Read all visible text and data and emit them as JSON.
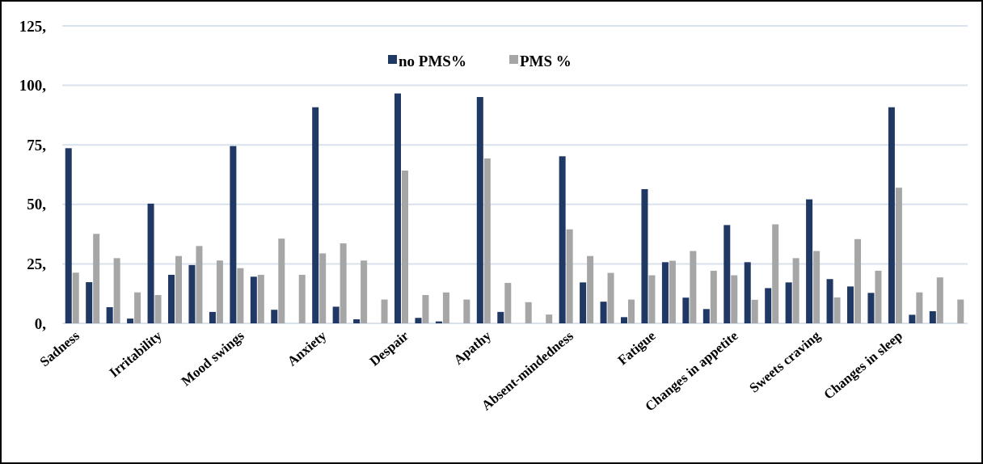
{
  "chart_data": {
    "type": "bar",
    "categories": [
      "Sadness",
      null,
      null,
      null,
      "Irritability",
      null,
      null,
      null,
      "Mood swings",
      null,
      null,
      null,
      "Anxiety",
      null,
      null,
      null,
      "Despair",
      null,
      null,
      null,
      "Apathy",
      null,
      null,
      null,
      "Absent-mindedness",
      null,
      null,
      null,
      "Fatigue",
      null,
      null,
      null,
      "Changes in appetite",
      null,
      null,
      null,
      "Sweets craving",
      null,
      null,
      null,
      "Changes in sleep",
      null,
      null,
      null
    ],
    "series": [
      {
        "name": "no PMS%",
        "color": "#203864",
        "values": [
          73.6,
          17.3,
          6.8,
          2.0,
          50.3,
          20.4,
          24.5,
          4.8,
          74.5,
          19.6,
          5.7,
          null,
          90.8,
          7.0,
          1.7,
          null,
          96.6,
          2.3,
          0.8,
          null,
          95.1,
          4.8,
          null,
          null,
          70.2,
          17.2,
          9.1,
          2.6,
          56.4,
          25.7,
          10.8,
          6.0,
          41.3,
          25.7,
          14.8,
          17.2,
          52.1,
          18.6,
          15.5,
          12.8,
          90.8,
          3.6,
          5.1,
          null
        ]
      },
      {
        "name": "PMS %",
        "color": "#a6a6a6",
        "values": [
          21.3,
          37.6,
          27.4,
          13.0,
          11.9,
          28.3,
          32.5,
          26.4,
          23.2,
          20.4,
          35.6,
          20.4,
          29.4,
          33.6,
          26.4,
          10.0,
          64.2,
          11.9,
          13.0,
          10.0,
          69.3,
          17.0,
          8.9,
          3.7,
          39.5,
          28.3,
          21.2,
          10.0,
          20.2,
          26.3,
          30.4,
          22.1,
          20.2,
          9.9,
          41.6,
          27.4,
          30.4,
          10.9,
          35.4,
          22.1,
          57.0,
          13.0,
          19.3,
          10.0
        ]
      }
    ],
    "ylim": [
      0,
      125
    ],
    "yticks": [
      {
        "value": 0,
        "label": "0,"
      },
      {
        "value": 25,
        "label": "25,"
      },
      {
        "value": 50,
        "label": "50,"
      },
      {
        "value": 75,
        "label": "75,"
      },
      {
        "value": 100,
        "label": "100,"
      },
      {
        "value": 125,
        "label": "125,"
      }
    ],
    "grid": "y",
    "legend": "top"
  }
}
